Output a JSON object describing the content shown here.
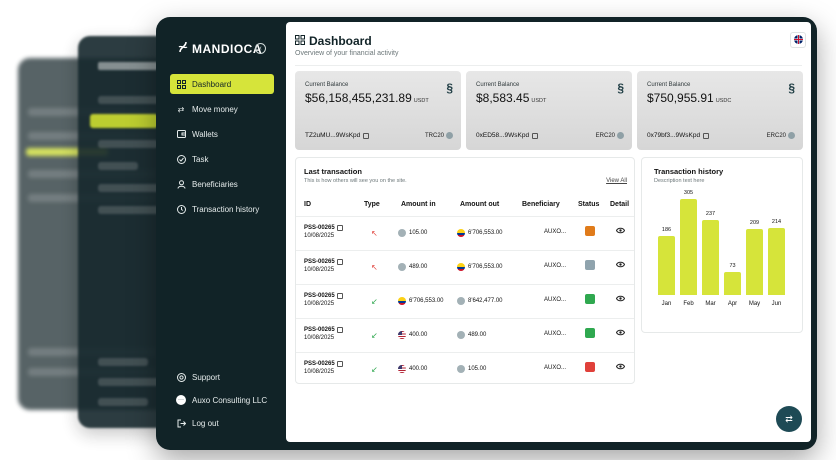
{
  "app": {
    "brand": "MANDIOCA"
  },
  "sidebar": {
    "items": [
      {
        "label": "Dashboard",
        "icon": "grid-icon"
      },
      {
        "label": "Move money",
        "icon": "transfer-icon"
      },
      {
        "label": "Wallets",
        "icon": "wallet-icon"
      },
      {
        "label": "Task",
        "icon": "check-circle-icon"
      },
      {
        "label": "Beneficiaries",
        "icon": "user-icon"
      },
      {
        "label": "Transaction history",
        "icon": "history-icon"
      }
    ],
    "support": "Support",
    "account": "Auxo Consulting LLC",
    "logout": "Log out"
  },
  "header": {
    "title": "Dashboard",
    "subtitle": "Overview of your financial activity"
  },
  "balances": [
    {
      "label": "Current Balance",
      "amount": "$56,158,455,231.89",
      "currency": "USDT",
      "address": "TZ2uMU...9WsKpd",
      "network": "TRC20"
    },
    {
      "label": "Current Balance",
      "amount": "$8,583.45",
      "currency": "USDT",
      "address": "0xED58...9WsKpd",
      "network": "ERC20"
    },
    {
      "label": "Current Balance",
      "amount": "$750,955.91",
      "currency": "USDC",
      "address": "0x79bf3...9WsKpd",
      "network": "ERC20"
    }
  ],
  "transactions": {
    "title": "Last transaction",
    "subtitle": "This is how others will see you on the site.",
    "view_all": "View All",
    "headers": [
      "ID",
      "Type",
      "Amount in",
      "Amount out",
      "Beneficiary",
      "Status",
      "Detail"
    ],
    "rows": [
      {
        "id": "PSS-00265",
        "date": "10/08/2025",
        "type": "↖",
        "type_color": "#e0403a",
        "in": "105.00",
        "in_coin": "usdt",
        "out": "6'706,553.00",
        "out_coin": "co",
        "beneficiary": "AUXO...",
        "status_color": "#e07b1a"
      },
      {
        "id": "PSS-00265",
        "date": "10/08/2025",
        "type": "↖",
        "type_color": "#e0403a",
        "in": "489.00",
        "in_coin": "usdt",
        "out": "6'706,553.00",
        "out_coin": "co",
        "beneficiary": "AUXO...",
        "status_color": "#8fa3ad"
      },
      {
        "id": "PSS-00265",
        "date": "10/08/2025",
        "type": "↙",
        "type_color": "#2fa84f",
        "in": "6'706,553.00",
        "in_coin": "co",
        "out": "8'642,477.00",
        "out_coin": "usdt",
        "beneficiary": "AUXO...",
        "status_color": "#2fa84f"
      },
      {
        "id": "PSS-00265",
        "date": "10/08/2025",
        "type": "↙",
        "type_color": "#2fa84f",
        "in": "400.00",
        "in_coin": "us",
        "out": "489.00",
        "out_coin": "usdt",
        "beneficiary": "AUXO...",
        "status_color": "#2fa84f"
      },
      {
        "id": "PSS-00265",
        "date": "10/08/2025",
        "type": "↙",
        "type_color": "#2fa84f",
        "in": "400.00",
        "in_coin": "us",
        "out": "105.00",
        "out_coin": "usdt",
        "beneficiary": "AUXO...",
        "status_color": "#e0403a"
      }
    ]
  },
  "history": {
    "title": "Transaction history",
    "subtitle": "Description text here"
  },
  "chart_data": {
    "type": "bar",
    "categories": [
      "Jan",
      "Feb",
      "Mar",
      "Apr",
      "May",
      "Jun"
    ],
    "values": [
      186,
      305,
      237,
      73,
      209,
      214
    ],
    "ylim": [
      0,
      305
    ],
    "bar_color": "#d6e43a"
  },
  "colors": {
    "accent": "#d6e43a",
    "sidebar": "#112327"
  }
}
